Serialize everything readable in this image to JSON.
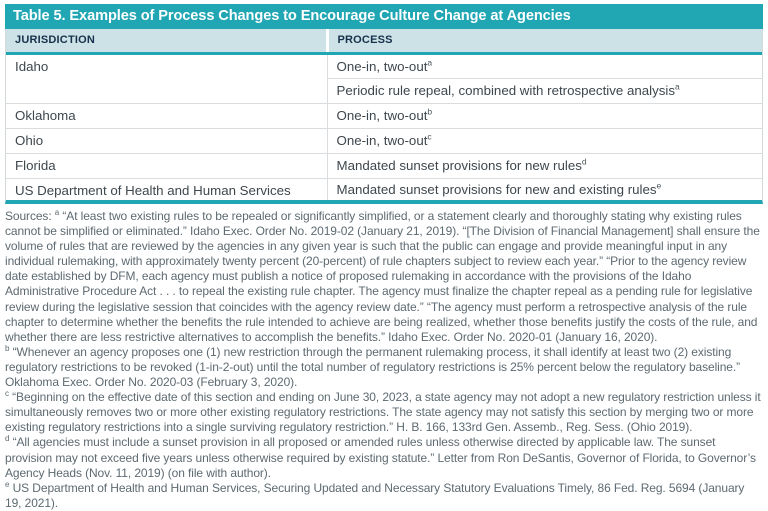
{
  "table": {
    "title": "Table 5. Examples of Process Changes to Encourage Culture Change at Agencies",
    "columns": {
      "jurisdiction": "JURISDICTION",
      "process": "PROCESS"
    },
    "rows": [
      {
        "jurisdiction": "Idaho",
        "process": "One-in, two-out",
        "note": "a"
      },
      {
        "jurisdiction": "",
        "process": "Periodic rule repeal, combined with retrospective analysis",
        "note": "a"
      },
      {
        "jurisdiction": "Oklahoma",
        "process": "One-in, two-out",
        "note": "b"
      },
      {
        "jurisdiction": "Ohio",
        "process": "One-in, two-out",
        "note": "c"
      },
      {
        "jurisdiction": "Florida",
        "process": "Mandated sunset provisions for new rules",
        "note": "d"
      },
      {
        "jurisdiction": "US Department of Health and Human Services",
        "process": "Mandated sunset provisions for new and existing rules",
        "note": "e"
      }
    ]
  },
  "sources": {
    "label": "Sources:",
    "notes": [
      {
        "mark": "a",
        "text": "“At least two existing rules to be repealed or significantly simplified, or a statement clearly and thoroughly stating why existing rules cannot be simplified or eliminated.” Idaho Exec. Order No. 2019-02 (January 21, 2019). “[The Division of Financial Management] shall ensure the volume of rules that are reviewed by the agencies in any given year is such that the public can engage and provide meaningful input in any individual rulemaking, with approximately twenty percent (20-percent) of rule chapters subject to review each year.” “Prior to the agency review date established by DFM, each agency must publish a notice of proposed rulemaking in accordance with the provisions of the Idaho Administrative Procedure Act . . . to repeal the existing rule chapter. The agency must finalize the chapter repeal as a pending rule for legislative review during the legislative session that coincides with the agency review date.” “The agency must perform a retrospective analysis of the rule chapter to determine whether the benefits the rule intended to achieve are being realized, whether those benefits justify the costs of the rule, and whether there are less restrictive alternatives to accomplish the benefits.” Idaho Exec. Order No. 2020-01 (January 16, 2020)."
      },
      {
        "mark": "b",
        "text": "“Whenever an agency proposes one (1) new restriction through the permanent rulemaking process, it shall identify at least two (2) existing regulatory restrictions to be revoked (1-in-2-out) until the total number of regulatory restrictions is 25% percent below the regulatory baseline.” Oklahoma Exec. Order No. 2020-03 (February 3, 2020)."
      },
      {
        "mark": "c",
        "text": "“Beginning on the effective date of this section and ending on June 30, 2023, a state agency may not adopt a new regulatory restriction unless it simultaneously removes two or more other existing regulatory restrictions. The state agency may not satisfy this section by merging two or more existing regulatory restrictions into a single surviving regulatory restriction.” H. B. 166, 133rd Gen. Assemb., Reg. Sess. (Ohio 2019)."
      },
      {
        "mark": "d",
        "text": "“All agencies must include a sunset provision in all proposed or amended rules unless otherwise directed by applicable law. The sunset provision may not exceed five years unless otherwise required by existing statute.” Letter from Ron DeSantis, Governor of Florida, to Governor’s Agency Heads (Nov. 11, 2019) (on file with author)."
      },
      {
        "mark": "e",
        "text": "US Department of Health and Human Services, Securing Updated and Necessary Statutory Evaluations Timely, 86 Fed. Reg. 5694 (January 19, 2021)."
      }
    ]
  },
  "colors": {
    "accent_teal": "#21a6b4",
    "header_row_bg": "#cde2e7",
    "header_text": "#15314b",
    "body_text": "#3e474d",
    "source_text": "#5d6a71",
    "row_divider": "#d9dddf"
  }
}
